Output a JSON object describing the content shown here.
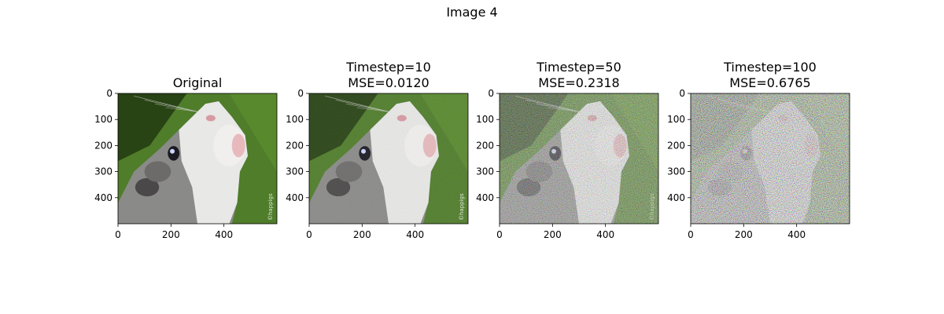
{
  "figure": {
    "suptitle": "Image 4",
    "panels": [
      {
        "title_lines": [
          "Original"
        ],
        "noise_level": 0.0,
        "watermark": "©happigs"
      },
      {
        "title_lines": [
          "Timestep=10",
          "MSE=0.0120"
        ],
        "noise_level": 0.08,
        "watermark": "©happigs"
      },
      {
        "title_lines": [
          "Timestep=50",
          "MSE=0.2318"
        ],
        "noise_level": 0.45,
        "watermark": "©happigs"
      },
      {
        "title_lines": [
          "Timestep=100",
          "MSE=0.6765"
        ],
        "noise_level": 0.82,
        "watermark": ""
      }
    ],
    "y_ticks": [
      "0",
      "100",
      "200",
      "300",
      "400"
    ],
    "y_tick_values": [
      0,
      100,
      200,
      300,
      400
    ],
    "x_ticks": [
      "0",
      "200",
      "400"
    ],
    "x_tick_values": [
      0,
      200,
      400
    ],
    "image_extent": {
      "width": 600,
      "height": 500
    },
    "colors": {
      "grass": "#4f7d2a",
      "grass_dark": "#243d12",
      "fur_white": "#e8e8e6",
      "fur_grey": "#8a8a88",
      "fur_dark": "#4a4848",
      "eye": "#1a1a22",
      "nose": "#d89aa2"
    }
  }
}
